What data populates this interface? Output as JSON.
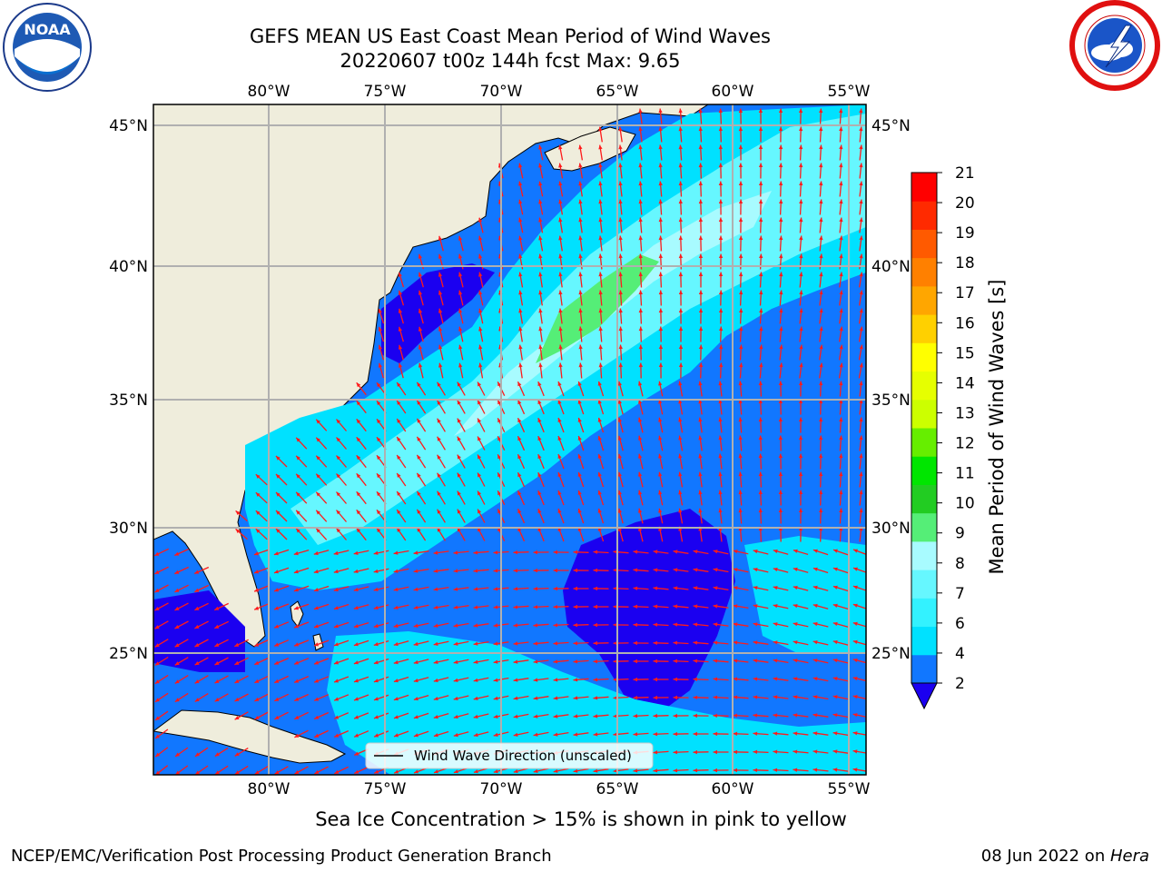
{
  "title_line1": "GEFS MEAN US East Coast Mean Period of Wind Waves",
  "title_line2": "20220607 t00z 144h fcst   Max: 9.65",
  "logos": {
    "left": "noaa-logo",
    "left_text": "NOAA",
    "right": "nws-logo"
  },
  "map": {
    "projection": "lat-lon",
    "lon_range": [
      -85,
      -54.5
    ],
    "lat_range": [
      20,
      46
    ],
    "lon_ticks": [
      "80°W",
      "75°W",
      "70°W",
      "65°W",
      "60°W",
      "55°W"
    ],
    "lat_ticks": [
      "45°N",
      "40°N",
      "35°N",
      "30°N",
      "25°N"
    ],
    "grid": true,
    "land_color": "#efeddc",
    "arrow_color": "#ff1a1a",
    "legend_text": "Wind Wave Direction (unscaled)",
    "legend_placement": "bottom-center"
  },
  "colorbar": {
    "label": "Mean Period of Wind Waves [s]",
    "ticks": [
      "2",
      "4",
      "6",
      "7",
      "8",
      "9",
      "10",
      "11",
      "12",
      "13",
      "14",
      "15",
      "16",
      "17",
      "18",
      "19",
      "20",
      "21"
    ],
    "under_color": "#1b00f0",
    "colors": [
      "#1177ff",
      "#00e1ff",
      "#33f2ff",
      "#66f7ff",
      "#a8fbff",
      "#55ee77",
      "#22cc22",
      "#00e600",
      "#66ee00",
      "#ccff00",
      "#e6ff00",
      "#ffff00",
      "#ffd000",
      "#ffa600",
      "#ff8000",
      "#ff5a00",
      "#ff2a00",
      "#ff0000"
    ]
  },
  "caption": "Sea Ice Concentration > 15% is shown in pink to yellow",
  "footer_left": "NCEP/EMC/Verification Post Processing Product Generation Branch",
  "footer_date": "08 Jun 2022 on ",
  "footer_host": "Hera"
}
